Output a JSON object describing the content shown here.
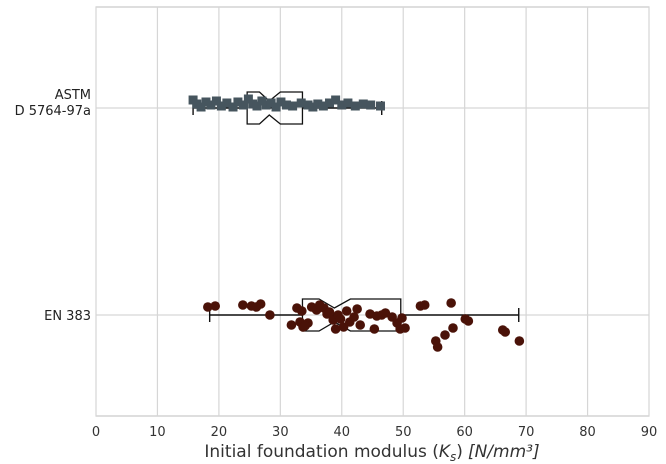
{
  "chart_data": {
    "type": "box",
    "xlabel_main": "Initial foundation modulus (",
    "xlabel_sym": "K",
    "xlabel_sub": "s",
    "xlabel_close": ")",
    "xlabel_units": "[N/mm³]",
    "xlim": [
      0,
      90
    ],
    "xticks": [
      "0",
      "10",
      "20",
      "30",
      "40",
      "50",
      "60",
      "70",
      "80",
      "90"
    ],
    "grid": true,
    "categories": [
      {
        "line1": "ASTM",
        "line2": "D 5764-97a"
      },
      {
        "line1": "EN 383",
        "line2": ""
      }
    ],
    "series": [
      {
        "category_index": 0,
        "marker": "square",
        "color": "#46555e",
        "box": {
          "whisker_low": 15.8,
          "q1": 24.6,
          "median": 28.2,
          "q3": 33.6,
          "whisker_high": 46.5,
          "notch_low": 26.6,
          "notch_high": 30.0
        },
        "points": [
          {
            "x": 15.8,
            "j": -8
          },
          {
            "x": 16.4,
            "j": -4
          },
          {
            "x": 17.1,
            "j": -1
          },
          {
            "x": 17.9,
            "j": -6
          },
          {
            "x": 18.7,
            "j": -3
          },
          {
            "x": 19.6,
            "j": -7
          },
          {
            "x": 20.4,
            "j": -2
          },
          {
            "x": 21.3,
            "j": -5
          },
          {
            "x": 22.3,
            "j": -1
          },
          {
            "x": 23.1,
            "j": -6
          },
          {
            "x": 24.0,
            "j": -3
          },
          {
            "x": 24.8,
            "j": -9
          },
          {
            "x": 25.5,
            "j": -4
          },
          {
            "x": 26.2,
            "j": -2
          },
          {
            "x": 27.0,
            "j": -7
          },
          {
            "x": 27.7,
            "j": -3
          },
          {
            "x": 28.5,
            "j": -5
          },
          {
            "x": 29.3,
            "j": -1
          },
          {
            "x": 30.1,
            "j": -6
          },
          {
            "x": 31.0,
            "j": -3
          },
          {
            "x": 32.0,
            "j": -2
          },
          {
            "x": 33.4,
            "j": -5
          },
          {
            "x": 34.5,
            "j": -3
          },
          {
            "x": 35.3,
            "j": -1
          },
          {
            "x": 36.1,
            "j": -4
          },
          {
            "x": 37.0,
            "j": -2
          },
          {
            "x": 38.0,
            "j": -5
          },
          {
            "x": 39.0,
            "j": -8
          },
          {
            "x": 40.0,
            "j": -3
          },
          {
            "x": 41.0,
            "j": -5
          },
          {
            "x": 42.2,
            "j": -2
          },
          {
            "x": 43.5,
            "j": -4
          },
          {
            "x": 44.7,
            "j": -3
          },
          {
            "x": 46.3,
            "j": -2
          }
        ]
      },
      {
        "category_index": 1,
        "marker": "circle",
        "color": "#4a1208",
        "box": {
          "whisker_low": 18.5,
          "q1": 33.6,
          "median": 38.8,
          "q3": 49.6,
          "whisker_high": 68.8,
          "notch_low": 36.3,
          "notch_high": 41.4
        },
        "points": [
          {
            "x": 18.2,
            "j": -8
          },
          {
            "x": 19.4,
            "j": -9
          },
          {
            "x": 23.9,
            "j": -10
          },
          {
            "x": 25.3,
            "j": -9
          },
          {
            "x": 26.1,
            "j": -8
          },
          {
            "x": 26.8,
            "j": -11
          },
          {
            "x": 28.3,
            "j": 0
          },
          {
            "x": 31.8,
            "j": 10
          },
          {
            "x": 32.7,
            "j": -7
          },
          {
            "x": 33.5,
            "j": -4
          },
          {
            "x": 33.2,
            "j": 7
          },
          {
            "x": 33.7,
            "j": 12
          },
          {
            "x": 34.5,
            "j": 8
          },
          {
            "x": 34.0,
            "j": 11
          },
          {
            "x": 35.1,
            "j": -8
          },
          {
            "x": 35.9,
            "j": -5
          },
          {
            "x": 36.4,
            "j": -10
          },
          {
            "x": 37.1,
            "j": -7
          },
          {
            "x": 37.6,
            "j": -1
          },
          {
            "x": 38.0,
            "j": -3
          },
          {
            "x": 38.6,
            "j": 5
          },
          {
            "x": 39.0,
            "j": 14
          },
          {
            "x": 39.4,
            "j": 0
          },
          {
            "x": 39.8,
            "j": 4
          },
          {
            "x": 40.3,
            "j": 12
          },
          {
            "x": 40.8,
            "j": -4
          },
          {
            "x": 41.3,
            "j": 7
          },
          {
            "x": 42.0,
            "j": 2
          },
          {
            "x": 42.5,
            "j": -6
          },
          {
            "x": 43.0,
            "j": 10
          },
          {
            "x": 44.6,
            "j": -1
          },
          {
            "x": 45.3,
            "j": 14
          },
          {
            "x": 45.7,
            "j": 1
          },
          {
            "x": 46.5,
            "j": 0
          },
          {
            "x": 47.1,
            "j": -2
          },
          {
            "x": 48.2,
            "j": 2
          },
          {
            "x": 49.0,
            "j": 8
          },
          {
            "x": 49.5,
            "j": 14
          },
          {
            "x": 49.8,
            "j": 3
          },
          {
            "x": 50.3,
            "j": 13
          },
          {
            "x": 52.8,
            "j": -9
          },
          {
            "x": 53.5,
            "j": -10
          },
          {
            "x": 55.3,
            "j": 26
          },
          {
            "x": 55.6,
            "j": 32
          },
          {
            "x": 56.8,
            "j": 20
          },
          {
            "x": 57.8,
            "j": -12
          },
          {
            "x": 58.1,
            "j": 13
          },
          {
            "x": 60.1,
            "j": 4
          },
          {
            "x": 60.6,
            "j": 6
          },
          {
            "x": 66.2,
            "j": 15
          },
          {
            "x": 66.6,
            "j": 17
          },
          {
            "x": 68.9,
            "j": 26
          }
        ]
      }
    ]
  }
}
